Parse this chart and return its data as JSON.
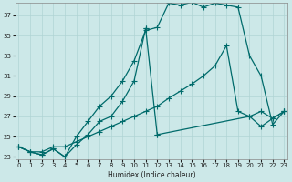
{
  "xlabel": "Humidex (Indice chaleur)",
  "xlim": [
    -0.3,
    23.3
  ],
  "ylim": [
    22.8,
    38.2
  ],
  "yticks": [
    23,
    25,
    27,
    29,
    31,
    33,
    35,
    37
  ],
  "xticks": [
    0,
    1,
    2,
    3,
    4,
    5,
    6,
    7,
    8,
    9,
    10,
    11,
    12,
    13,
    14,
    15,
    16,
    17,
    18,
    19,
    20,
    21,
    22,
    23
  ],
  "bg_color": "#cce8e8",
  "grid_color": "#b0d4d4",
  "line_color": "#006b6b",
  "line1_x": [
    0,
    1,
    2,
    3,
    4,
    5,
    6,
    7,
    8,
    9,
    10,
    11,
    12,
    13,
    14,
    15,
    16,
    17,
    18,
    19,
    20,
    21,
    22,
    23
  ],
  "line1_y": [
    24.0,
    23.5,
    23.2,
    23.8,
    23.0,
    25.0,
    26.5,
    28.0,
    29.0,
    30.5,
    32.5,
    35.5,
    35.8,
    38.2,
    38.0,
    38.3,
    37.8,
    38.2,
    38.0,
    37.8,
    33.0,
    31.0,
    26.2,
    27.5
  ],
  "line2_x": [
    0,
    1,
    2,
    3,
    4,
    5,
    6,
    7,
    8,
    9,
    10,
    11,
    11,
    12,
    12,
    20,
    21,
    22,
    23
  ],
  "line2_y": [
    24.0,
    23.5,
    23.2,
    23.8,
    23.0,
    24.2,
    25.2,
    26.5,
    27.0,
    28.5,
    30.5,
    35.7,
    35.7,
    25.2,
    25.2,
    27.0,
    26.0,
    26.8,
    27.5
  ],
  "line3_x": [
    0,
    1,
    2,
    3,
    4,
    5,
    6,
    7,
    8,
    9,
    10,
    11,
    12,
    13,
    14,
    15,
    16,
    17,
    18,
    19,
    20,
    21,
    22,
    23
  ],
  "line3_y": [
    24.0,
    23.5,
    23.5,
    24.0,
    24.0,
    24.5,
    25.0,
    25.5,
    26.0,
    26.5,
    27.0,
    27.5,
    28.0,
    28.8,
    29.5,
    30.2,
    31.0,
    32.0,
    34.0,
    27.5,
    27.0,
    27.5,
    26.8,
    27.5
  ]
}
